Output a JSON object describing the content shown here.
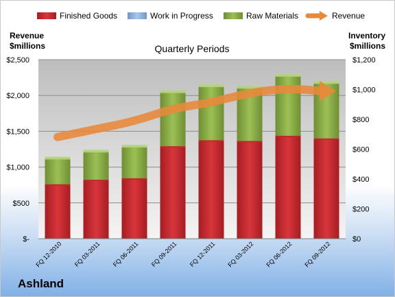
{
  "brand": "Ashland",
  "chart_data": {
    "type": "bar",
    "stacked": true,
    "title": "Quarterly Periods",
    "ylabel_left": [
      "Revenue",
      "$millions"
    ],
    "ylabel_right": [
      "Inventory",
      "$millions"
    ],
    "categories": [
      "FQ 12-2010",
      "FQ 03-2011",
      "FQ 06-2011",
      "FQ 09-2011",
      "FQ 12-2011",
      "FQ 03-2012",
      "FQ 06-2012",
      "FQ 09-2012"
    ],
    "left_ticks": [
      "$-",
      "$500",
      "$1,000",
      "$1,500",
      "$2,000",
      "$2,500"
    ],
    "right_ticks": [
      "$0",
      "$200",
      "$400",
      "$600",
      "$800",
      "$1,000",
      "$1,200"
    ],
    "ylim_left": [
      0,
      2500
    ],
    "ylim_right": [
      0,
      1200
    ],
    "legend_position": "top",
    "grid": true,
    "series": [
      {
        "name": "Finished Goods",
        "axis": "right",
        "color": "#c0272d",
        "values": [
          365,
          395,
          405,
          620,
          660,
          655,
          690,
          672
        ]
      },
      {
        "name": "Work in Progress",
        "axis": "right",
        "color": "#8fb4e0",
        "values": [
          0,
          0,
          0,
          0,
          0,
          0,
          0,
          0
        ]
      },
      {
        "name": "Raw Materials",
        "axis": "right",
        "color": "#8aab45",
        "values": [
          175,
          192,
          215,
          365,
          365,
          360,
          405,
          375
        ]
      },
      {
        "name": "Revenue",
        "axis": "left",
        "color": "#e8893a",
        "type": "line",
        "values": [
          1420,
          1530,
          1640,
          1820,
          1900,
          2040,
          2100,
          2060
        ]
      }
    ]
  }
}
